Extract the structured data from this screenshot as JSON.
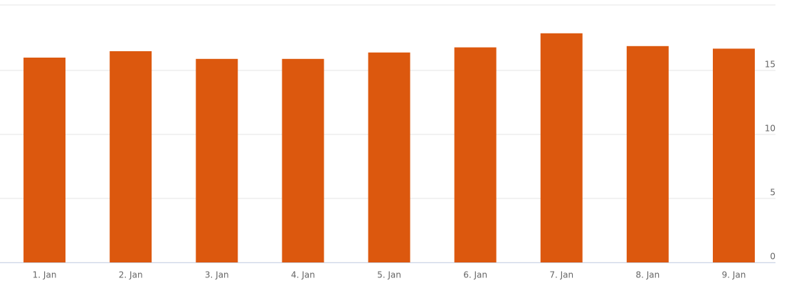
{
  "chart_data": {
    "type": "bar",
    "categories": [
      "1. Jan",
      "2. Jan",
      "3. Jan",
      "4. Jan",
      "5. Jan",
      "6. Jan",
      "7. Jan",
      "8. Jan",
      "9. Jan"
    ],
    "values": [
      16.0,
      16.5,
      15.9,
      15.9,
      16.4,
      16.8,
      17.9,
      16.9,
      16.7
    ],
    "color": "#dc580e",
    "ylim": [
      0,
      20
    ],
    "yticks": [
      0,
      5,
      10,
      15
    ],
    "grid": true
  }
}
